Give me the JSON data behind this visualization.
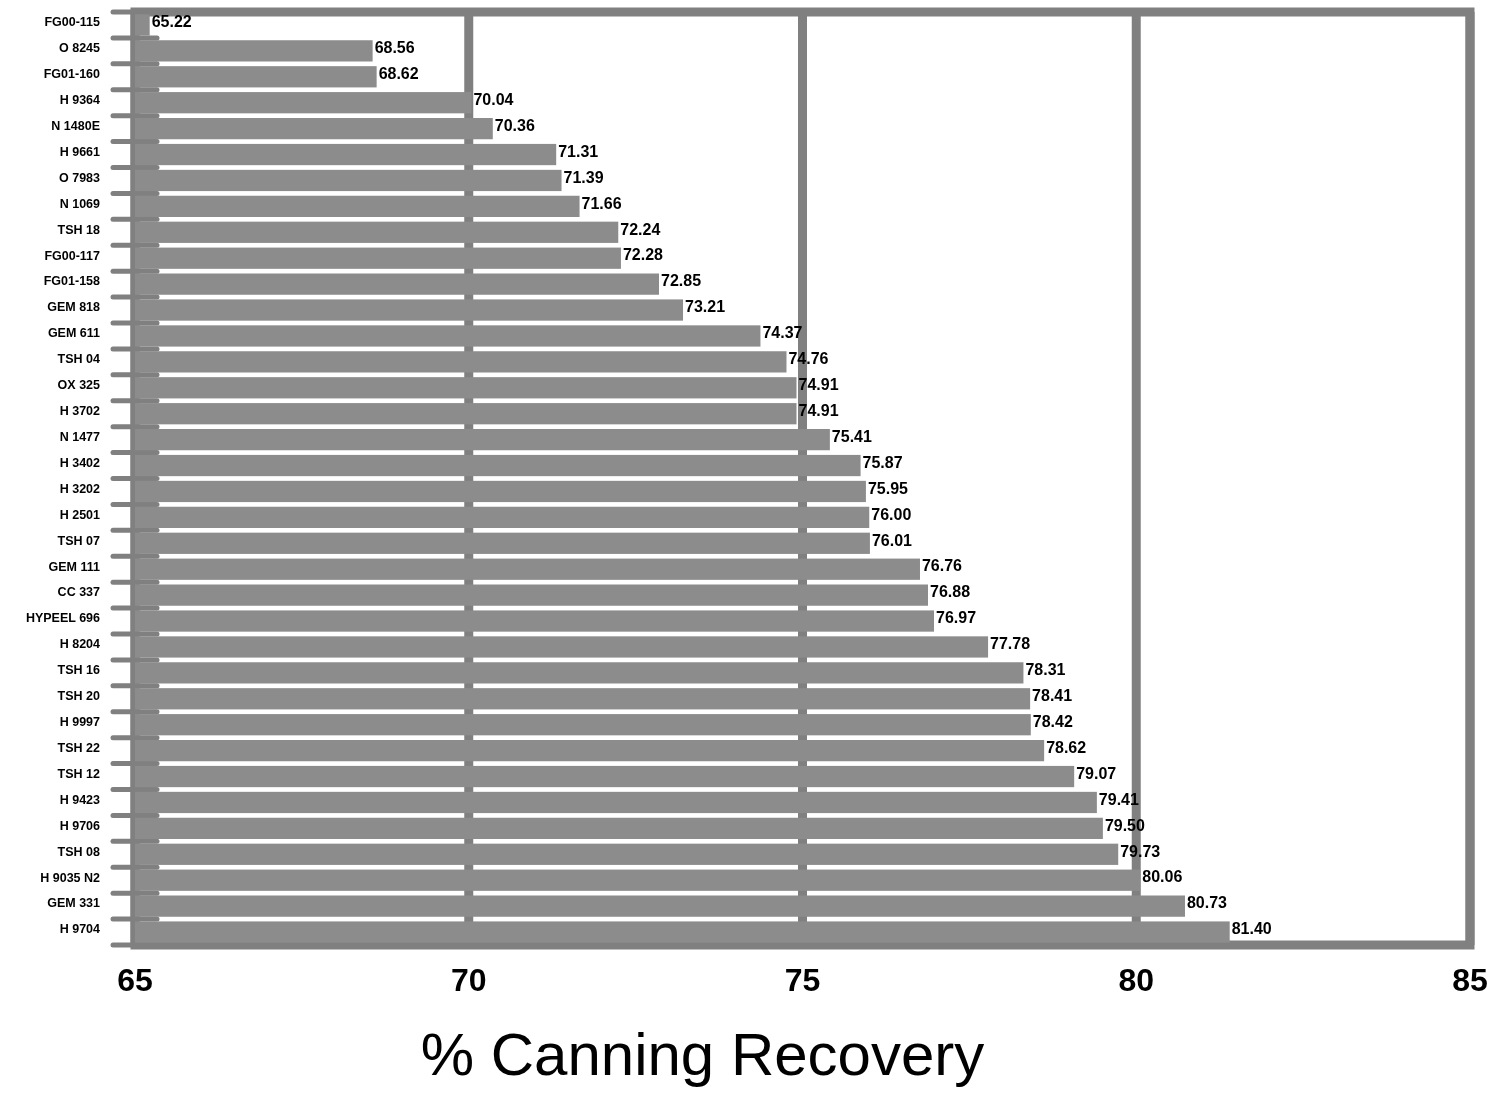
{
  "chart_data": {
    "type": "bar",
    "orientation": "horizontal",
    "xlabel": "% Canning Recovery",
    "categories": [
      "FG00-115",
      "O 8245",
      "FG01-160",
      "H 9364",
      "N 1480E",
      "H 9661",
      "O 7983",
      "N 1069",
      "TSH 18",
      "FG00-117",
      "FG01-158",
      "GEM 818",
      "GEM 611",
      "TSH 04",
      "OX 325",
      "H 3702",
      "N 1477",
      "H 3402",
      "H 3202",
      "H 2501",
      "TSH 07",
      "GEM 111",
      "CC 337",
      "HYPEEL 696",
      "H 8204",
      "TSH 16",
      "TSH 20",
      "H 9997",
      "TSH 22",
      "TSH 12",
      "H 9423",
      "H 9706",
      "TSH 08",
      "H 9035 N2",
      "GEM 331",
      "H 9704"
    ],
    "values": [
      65.22,
      68.56,
      68.62,
      70.04,
      70.36,
      71.31,
      71.39,
      71.66,
      72.24,
      72.28,
      72.85,
      73.21,
      74.37,
      74.76,
      74.91,
      74.91,
      75.41,
      75.87,
      75.95,
      76.0,
      76.01,
      76.76,
      76.88,
      76.97,
      77.78,
      78.31,
      78.41,
      78.42,
      78.62,
      79.07,
      79.41,
      79.5,
      79.73,
      80.06,
      80.73,
      81.4
    ],
    "value_labels": [
      "65.22",
      "68.56",
      "68.62",
      "70.04",
      "70.36",
      "71.31",
      "71.39",
      "71.66",
      "72.24",
      "72.28",
      "72.85",
      "73.21",
      "74.37",
      "74.76",
      "74.91",
      "74.91",
      "75.41",
      "75.87",
      "75.95",
      "76.00",
      "76.01",
      "76.76",
      "76.88",
      "76.97",
      "77.78",
      "78.31",
      "78.41",
      "78.42",
      "78.62",
      "79.07",
      "79.41",
      "79.50",
      "79.73",
      "80.06",
      "80.73",
      "81.40"
    ],
    "color": "#8c8c8c",
    "xlim": [
      65,
      85
    ],
    "xticks": [
      65,
      70,
      75,
      80,
      85
    ],
    "grid": "x"
  }
}
